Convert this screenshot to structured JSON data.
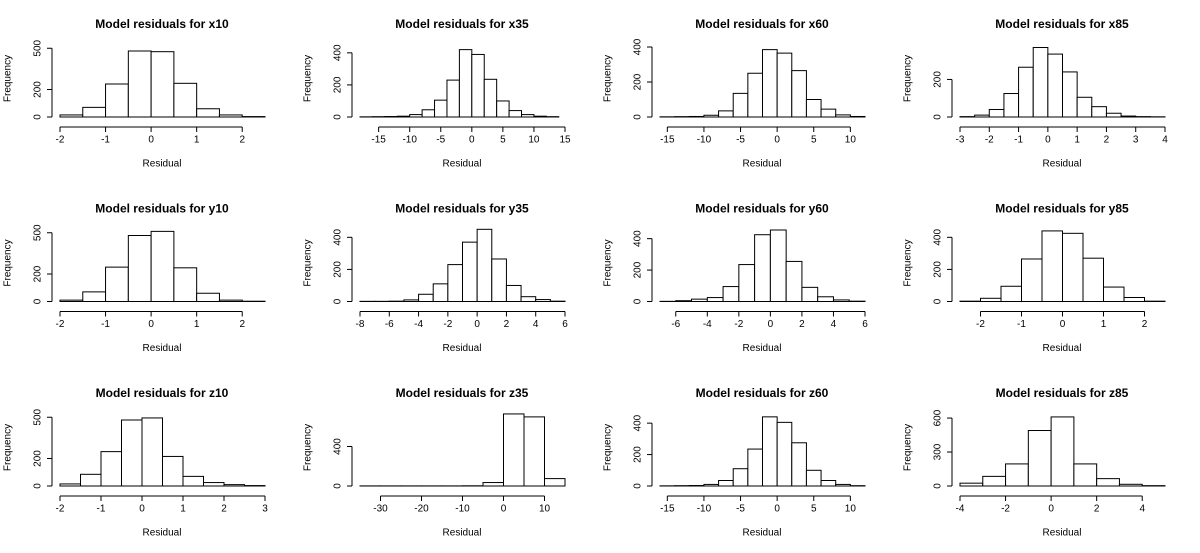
{
  "chart_data": [
    {
      "type": "histogram",
      "title": "Model residuals for x10",
      "xlabel": "Residual",
      "ylabel": "Frequency",
      "bins": [
        -2,
        -1.5,
        -1,
        -0.5,
        0,
        0.5,
        1,
        1.5,
        2,
        2.5
      ],
      "values": [
        15,
        70,
        240,
        480,
        475,
        245,
        60,
        15,
        3
      ],
      "xlim": [
        -2,
        2.5
      ],
      "ylim": [
        0,
        560
      ],
      "xticks": [
        -2,
        -1,
        0,
        1,
        2
      ],
      "yticks": [
        0,
        200,
        500
      ]
    },
    {
      "type": "histogram",
      "title": "Model residuals for x35",
      "xlabel": "Residual",
      "ylabel": "Frequency",
      "bins": [
        -18,
        -16,
        -14,
        -12,
        -10,
        -8,
        -6,
        -4,
        -2,
        0,
        2,
        4,
        6,
        8,
        10,
        12,
        14
      ],
      "values": [
        1,
        2,
        3,
        5,
        15,
        45,
        105,
        230,
        420,
        390,
        235,
        100,
        40,
        15,
        5,
        2
      ],
      "xlim": [
        -18,
        15
      ],
      "ylim": [
        0,
        480
      ],
      "xticks": [
        -15,
        -10,
        -5,
        0,
        5,
        10,
        15
      ],
      "yticks": [
        0,
        200,
        400
      ]
    },
    {
      "type": "histogram",
      "title": "Model residuals for x60",
      "xlabel": "Residual",
      "ylabel": "Frequency",
      "bins": [
        -16,
        -14,
        -12,
        -10,
        -8,
        -6,
        -4,
        -2,
        0,
        2,
        4,
        6,
        8,
        10,
        12
      ],
      "values": [
        1,
        2,
        3,
        10,
        35,
        135,
        250,
        385,
        365,
        265,
        100,
        45,
        12,
        3
      ],
      "xlim": [
        -16,
        12
      ],
      "ylim": [
        0,
        440
      ],
      "xticks": [
        -15,
        -10,
        -5,
        0,
        5,
        10
      ],
      "yticks": [
        0,
        200,
        400
      ]
    },
    {
      "type": "histogram",
      "title": "Model residuals for x85",
      "xlabel": "Residual",
      "ylabel": "Frequency",
      "bins": [
        -3,
        -2.5,
        -2,
        -1.5,
        -1,
        -0.5,
        0,
        0.5,
        1,
        1.5,
        2,
        2.5,
        3,
        3.5,
        4
      ],
      "values": [
        2,
        10,
        40,
        125,
        265,
        370,
        335,
        240,
        105,
        55,
        20,
        5,
        2,
        1
      ],
      "xlim": [
        -3,
        4
      ],
      "ylim": [
        0,
        410
      ],
      "xticks": [
        -3,
        -2,
        -1,
        0,
        1,
        2,
        3,
        4
      ],
      "yticks": [
        0,
        200
      ]
    },
    {
      "type": "histogram",
      "title": "Model residuals for y10",
      "xlabel": "Residual",
      "ylabel": "Frequency",
      "bins": [
        -2,
        -1.5,
        -1,
        -0.5,
        0,
        0.5,
        1,
        1.5,
        2,
        2.5
      ],
      "values": [
        10,
        70,
        250,
        480,
        510,
        245,
        60,
        10,
        2
      ],
      "xlim": [
        -2,
        2.5
      ],
      "ylim": [
        0,
        560
      ],
      "xticks": [
        -2,
        -1,
        0,
        1,
        2
      ],
      "yticks": [
        0,
        200,
        500
      ]
    },
    {
      "type": "histogram",
      "title": "Model residuals for y35",
      "xlabel": "Residual",
      "ylabel": "Frequency",
      "bins": [
        -8,
        -7,
        -6,
        -5,
        -4,
        -3,
        -2,
        -1,
        0,
        1,
        2,
        3,
        4,
        5,
        6
      ],
      "values": [
        1,
        1,
        2,
        10,
        45,
        110,
        230,
        370,
        450,
        265,
        100,
        30,
        12,
        2
      ],
      "xlim": [
        -8,
        6
      ],
      "ylim": [
        0,
        480
      ],
      "xticks": [
        -8,
        -6,
        -4,
        -2,
        0,
        2,
        4,
        6
      ],
      "yticks": [
        0,
        200,
        400
      ]
    },
    {
      "type": "histogram",
      "title": "Model residuals for y60",
      "xlabel": "Residual",
      "ylabel": "Frequency",
      "bins": [
        -7,
        -6,
        -5,
        -4,
        -3,
        -2,
        -1,
        0,
        1,
        2,
        3,
        4,
        5,
        6
      ],
      "values": [
        1,
        5,
        15,
        25,
        95,
        235,
        425,
        455,
        255,
        90,
        30,
        10,
        2
      ],
      "xlim": [
        -7,
        6
      ],
      "ylim": [
        0,
        490
      ],
      "xticks": [
        -6,
        -4,
        -2,
        0,
        2,
        4,
        6
      ],
      "yticks": [
        0,
        200,
        400
      ]
    },
    {
      "type": "histogram",
      "title": "Model residuals for y85",
      "xlabel": "Residual",
      "ylabel": "Frequency",
      "bins": [
        -2.5,
        -2,
        -1.5,
        -1,
        -0.5,
        0,
        0.5,
        1,
        1.5,
        2,
        2.5
      ],
      "values": [
        2,
        20,
        95,
        265,
        440,
        425,
        270,
        90,
        25,
        2
      ],
      "xlim": [
        -2.5,
        2.5
      ],
      "ylim": [
        0,
        480
      ],
      "xticks": [
        -2,
        -1,
        0,
        1,
        2
      ],
      "yticks": [
        0,
        200,
        400
      ]
    },
    {
      "type": "histogram",
      "title": "Model residuals for z10",
      "xlabel": "Residual",
      "ylabel": "Frequency",
      "bins": [
        -2,
        -1.5,
        -1,
        -0.5,
        0,
        0.5,
        1,
        1.5,
        2,
        2.5,
        3
      ],
      "values": [
        15,
        85,
        250,
        480,
        495,
        215,
        70,
        25,
        10,
        3
      ],
      "xlim": [
        -2,
        3
      ],
      "ylim": [
        0,
        560
      ],
      "xticks": [
        -2,
        -1,
        0,
        1,
        2,
        3
      ],
      "yticks": [
        0,
        200,
        500
      ]
    },
    {
      "type": "histogram",
      "title": "Model residuals for z35",
      "xlabel": "Residual",
      "ylabel": "Frequency",
      "bins": [
        -35,
        -30,
        -25,
        -20,
        -15,
        -10,
        -5,
        0,
        5,
        10,
        15
      ],
      "values": [
        1,
        1,
        1,
        1,
        1,
        2,
        35,
        730,
        700,
        75
      ],
      "xlim": [
        -35,
        15
      ],
      "ylim": [
        0,
        780
      ],
      "xticks": [
        -30,
        -20,
        -10,
        0,
        10
      ],
      "yticks": [
        0,
        400
      ]
    },
    {
      "type": "histogram",
      "title": "Model residuals for z60",
      "xlabel": "Residual",
      "ylabel": "Frequency",
      "bins": [
        -16,
        -14,
        -12,
        -10,
        -8,
        -6,
        -4,
        -2,
        0,
        2,
        4,
        6,
        8,
        10,
        12
      ],
      "values": [
        1,
        2,
        3,
        10,
        35,
        110,
        235,
        440,
        405,
        275,
        100,
        35,
        10,
        2
      ],
      "xlim": [
        -16,
        12
      ],
      "ylim": [
        0,
        490
      ],
      "xticks": [
        -15,
        -10,
        -5,
        0,
        5,
        10
      ],
      "yticks": [
        0,
        200,
        400
      ]
    },
    {
      "type": "histogram",
      "title": "Model residuals for z85",
      "xlabel": "Residual",
      "ylabel": "Frequency",
      "bins": [
        -4,
        -3,
        -2,
        -1,
        0,
        1,
        2,
        3,
        4,
        5
      ],
      "values": [
        25,
        85,
        195,
        490,
        610,
        195,
        65,
        15,
        3
      ],
      "xlim": [
        -4,
        5
      ],
      "ylim": [
        0,
        680
      ],
      "xticks": [
        -4,
        -2,
        0,
        2,
        4
      ],
      "yticks": [
        0,
        300,
        600
      ]
    }
  ]
}
